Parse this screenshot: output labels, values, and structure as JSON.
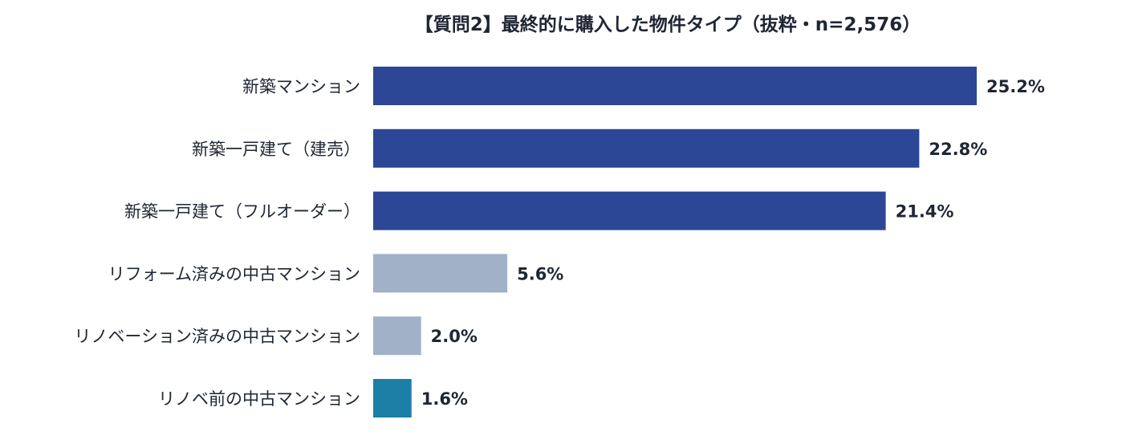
{
  "chart_data": {
    "type": "bar",
    "orientation": "horizontal",
    "title": "【質問2】最終的に購入した物件タイプ（抜粋・n=2,576）",
    "categories": [
      "新築マンション",
      "新築一戸建て（建売）",
      "新築一戸建て（フルオーダー）",
      "リフォーム済みの中古マンション",
      "リノベーション済みの中古マンション",
      "リノベ前の中古マンション"
    ],
    "values": [
      25.2,
      22.8,
      21.4,
      5.6,
      2.0,
      1.6
    ],
    "value_labels": [
      "25.2%",
      "22.8%",
      "21.4%",
      "5.6%",
      "2.0%",
      "1.6%"
    ],
    "bar_colors": [
      "#2c4796",
      "#2c4796",
      "#2c4796",
      "#a0b1c8",
      "#a0b1c8",
      "#1b7fa6"
    ],
    "unit": "%",
    "xlim": [
      0,
      25.2
    ],
    "grid": false,
    "legend": "none"
  }
}
